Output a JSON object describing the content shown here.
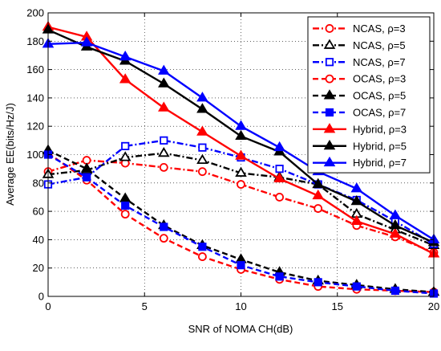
{
  "chart_data": {
    "type": "line",
    "title": "",
    "xlabel": "SNR of NOMA CH(dB)",
    "ylabel": "Average EE(bits/Hz/J)",
    "xlim": [
      0,
      20
    ],
    "ylim": [
      0,
      200
    ],
    "xticks": [
      0,
      5,
      10,
      15,
      20
    ],
    "yticks": [
      0,
      20,
      40,
      60,
      80,
      100,
      120,
      140,
      160,
      180,
      200
    ],
    "grid": true,
    "legend_position": "top-right",
    "x": [
      0,
      2,
      4,
      6,
      8,
      10,
      12,
      14,
      16,
      18,
      20
    ],
    "series": [
      {
        "name": "NCAS, ρ=3",
        "color": "#ff0000",
        "dash": "dashdot",
        "marker": "circle-open",
        "values": [
          88,
          96,
          94,
          91,
          88,
          79,
          70,
          62,
          50,
          42,
          31
        ]
      },
      {
        "name": "NCAS, ρ=5",
        "color": "#000000",
        "dash": "dashdot",
        "marker": "triangle-open",
        "values": [
          86,
          89,
          98,
          101,
          96,
          87,
          84,
          79,
          58,
          47,
          36
        ]
      },
      {
        "name": "NCAS, ρ=7",
        "color": "#0000ff",
        "dash": "dashdot",
        "marker": "square-open",
        "values": [
          79,
          84,
          106,
          110,
          105,
          98,
          90,
          79,
          68,
          53,
          37
        ]
      },
      {
        "name": "OCAS, ρ=3",
        "color": "#ff0000",
        "dash": "dashed",
        "marker": "circle-open",
        "values": [
          101,
          82,
          58,
          41,
          28,
          19,
          12,
          7,
          5,
          4,
          3
        ]
      },
      {
        "name": "OCAS, ρ=5",
        "color": "#000000",
        "dash": "dashed",
        "marker": "triangle-filled",
        "values": [
          103,
          90,
          69,
          50,
          36,
          26,
          17,
          11,
          8,
          5,
          3
        ]
      },
      {
        "name": "OCAS, ρ=7",
        "color": "#0000ff",
        "dash": "dashed",
        "marker": "square-filled",
        "values": [
          100,
          84,
          64,
          49,
          35,
          22,
          14,
          10,
          7,
          4,
          2
        ]
      },
      {
        "name": "Hybrid, ρ=3",
        "color": "#ff0000",
        "dash": "solid",
        "marker": "triangle-filled",
        "values": [
          190,
          183,
          153,
          133,
          116,
          99,
          83,
          71,
          53,
          44,
          30
        ]
      },
      {
        "name": "Hybrid, ρ=5",
        "color": "#000000",
        "dash": "solid",
        "marker": "triangle-filled",
        "values": [
          188,
          176,
          166,
          150,
          132,
          113,
          102,
          79,
          67,
          50,
          38
        ]
      },
      {
        "name": "Hybrid, ρ=7",
        "color": "#0000ff",
        "dash": "solid",
        "marker": "triangle-filled",
        "values": [
          178,
          179,
          169,
          159,
          140,
          120,
          105,
          88,
          76,
          57,
          40
        ]
      }
    ]
  }
}
